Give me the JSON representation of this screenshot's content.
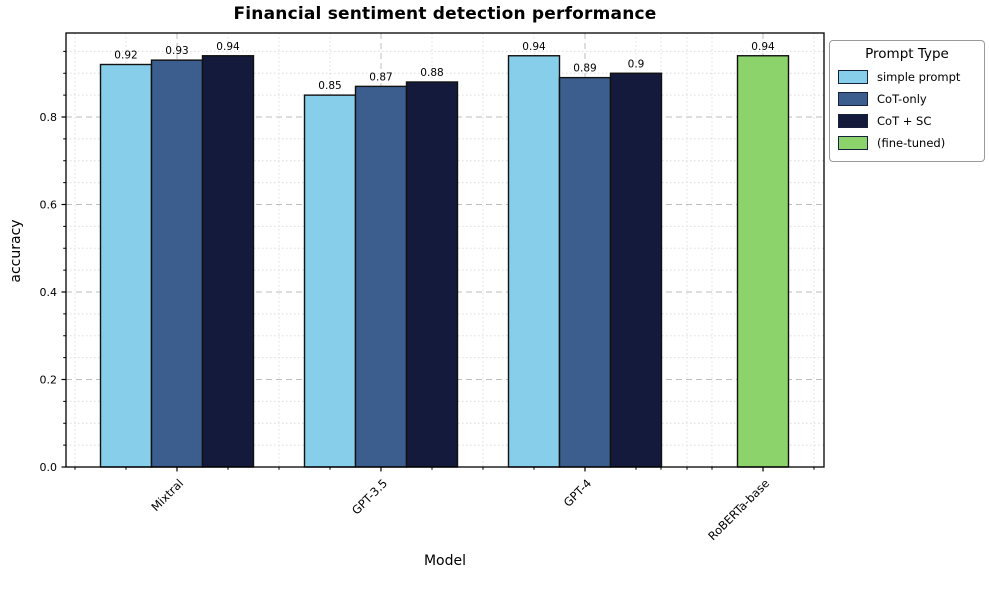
{
  "chart_data": {
    "type": "bar",
    "title": "Financial sentiment detection performance",
    "xlabel": "Model",
    "ylabel": "accuracy",
    "categories": [
      "Mixtral",
      "GPT-3.5",
      "GPT-4",
      "RoBERTa-base"
    ],
    "series": [
      {
        "name": "simple prompt",
        "color": "#87CEEB",
        "values": [
          0.92,
          0.85,
          0.94,
          null
        ]
      },
      {
        "name": "CoT-only",
        "color": "#3C5E8F",
        "values": [
          0.93,
          0.87,
          0.89,
          null
        ]
      },
      {
        "name": "CoT + SC",
        "color": "#131A3B",
        "values": [
          0.94,
          0.88,
          0.9,
          null
        ]
      },
      {
        "name": "(fine-tuned)",
        "color": "#8CD36C",
        "values": [
          null,
          null,
          null,
          0.94
        ]
      }
    ],
    "value_labels": [
      [
        "0.92",
        "0.93",
        "0.94"
      ],
      [
        "0.85",
        "0.87",
        "0.88"
      ],
      [
        "0.94",
        "0.89",
        "0.9"
      ],
      [
        "0.94"
      ]
    ],
    "ylim": [
      0,
      0.992
    ],
    "yticks": [
      0.0,
      0.2,
      0.4,
      0.6,
      0.8
    ],
    "ytick_labels": [
      "0.0",
      "0.2",
      "0.4",
      "0.6",
      "0.8"
    ],
    "grid": "major dashed + minor dotted, both axes",
    "bar_edge_color": "#111111",
    "legend": {
      "title": "Prompt Type",
      "position": "outside upper-right",
      "entries": [
        "simple prompt",
        "CoT-only",
        "CoT + SC",
        "(fine-tuned)"
      ]
    }
  }
}
